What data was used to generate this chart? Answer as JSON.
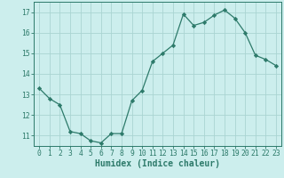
{
  "x": [
    0,
    1,
    2,
    3,
    4,
    5,
    6,
    7,
    8,
    9,
    10,
    11,
    12,
    13,
    14,
    15,
    16,
    17,
    18,
    19,
    20,
    21,
    22,
    23
  ],
  "y": [
    13.3,
    12.8,
    12.5,
    11.2,
    11.1,
    10.75,
    10.65,
    11.1,
    11.1,
    12.7,
    13.2,
    14.6,
    15.0,
    15.4,
    16.9,
    16.35,
    16.5,
    16.85,
    17.1,
    16.7,
    16.0,
    14.9,
    14.7,
    14.4
  ],
  "line_color": "#2d7a6a",
  "marker": "D",
  "marker_size": 2.2,
  "bg_color": "#cceeed",
  "grid_color": "#aad4d2",
  "xlabel": "Humidex (Indice chaleur)",
  "xlim": [
    -0.5,
    23.5
  ],
  "ylim": [
    10.5,
    17.5
  ],
  "yticks": [
    11,
    12,
    13,
    14,
    15,
    16,
    17
  ],
  "xticks": [
    0,
    1,
    2,
    3,
    4,
    5,
    6,
    7,
    8,
    9,
    10,
    11,
    12,
    13,
    14,
    15,
    16,
    17,
    18,
    19,
    20,
    21,
    22,
    23
  ],
  "tick_color": "#2d7a6a",
  "label_fontsize": 7.0,
  "tick_fontsize": 5.8,
  "linewidth": 0.9
}
